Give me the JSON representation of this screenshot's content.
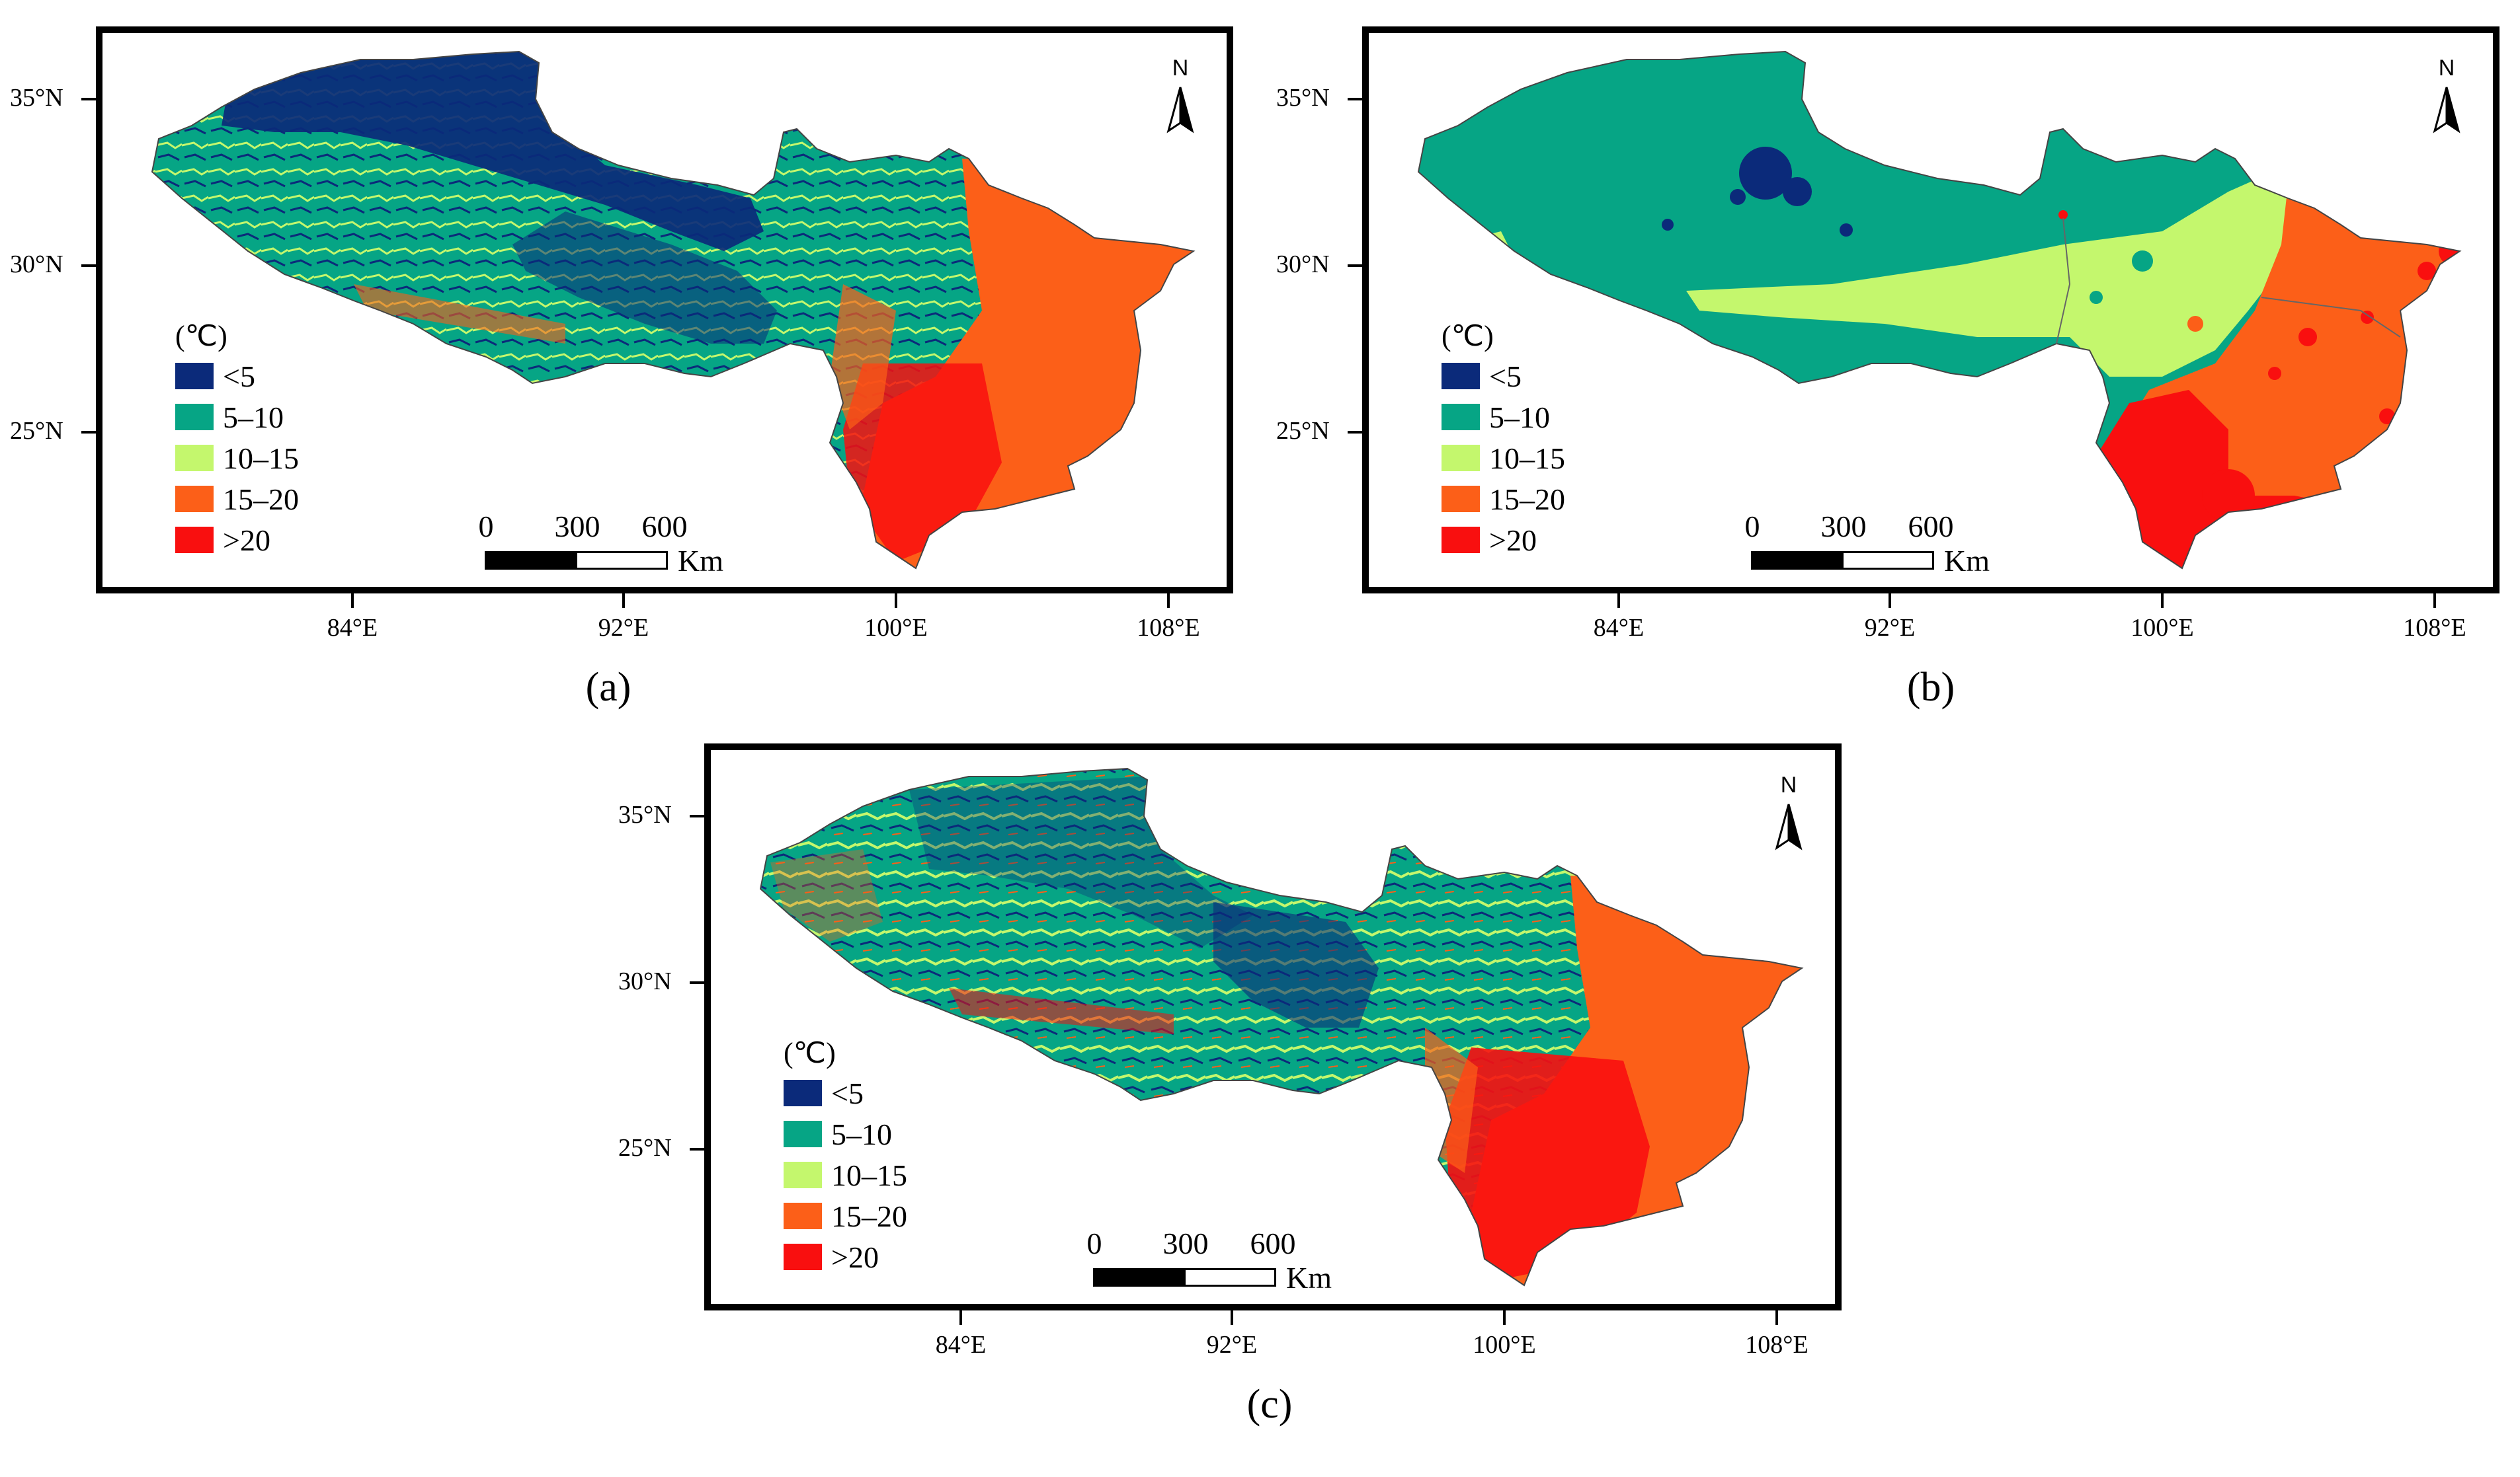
{
  "panels": [
    {
      "id": "a",
      "caption": "(a)"
    },
    {
      "id": "b",
      "caption": "(b)"
    },
    {
      "id": "c",
      "caption": "(c)"
    }
  ],
  "axes": {
    "lat_labels": [
      "35°N",
      "30°N",
      "25°N"
    ],
    "lon_labels": [
      "84°E",
      "92°E",
      "100°E",
      "108°E"
    ]
  },
  "legend": {
    "title": "(℃)",
    "classes": [
      {
        "label": "<5",
        "color": "#0b2a7a"
      },
      {
        "label": "5–10",
        "color": "#06a585"
      },
      {
        "label": "10–15",
        "color": "#c4f76d"
      },
      {
        "label": "15–20",
        "color": "#fc5f18"
      },
      {
        "label": ">20",
        "color": "#f90f0f"
      }
    ]
  },
  "scalebar": {
    "ticks": [
      "0",
      "300",
      "600"
    ],
    "unit": "Km"
  },
  "north_arrow": {
    "letter": "N",
    "icon": "north-arrow-icon"
  }
}
